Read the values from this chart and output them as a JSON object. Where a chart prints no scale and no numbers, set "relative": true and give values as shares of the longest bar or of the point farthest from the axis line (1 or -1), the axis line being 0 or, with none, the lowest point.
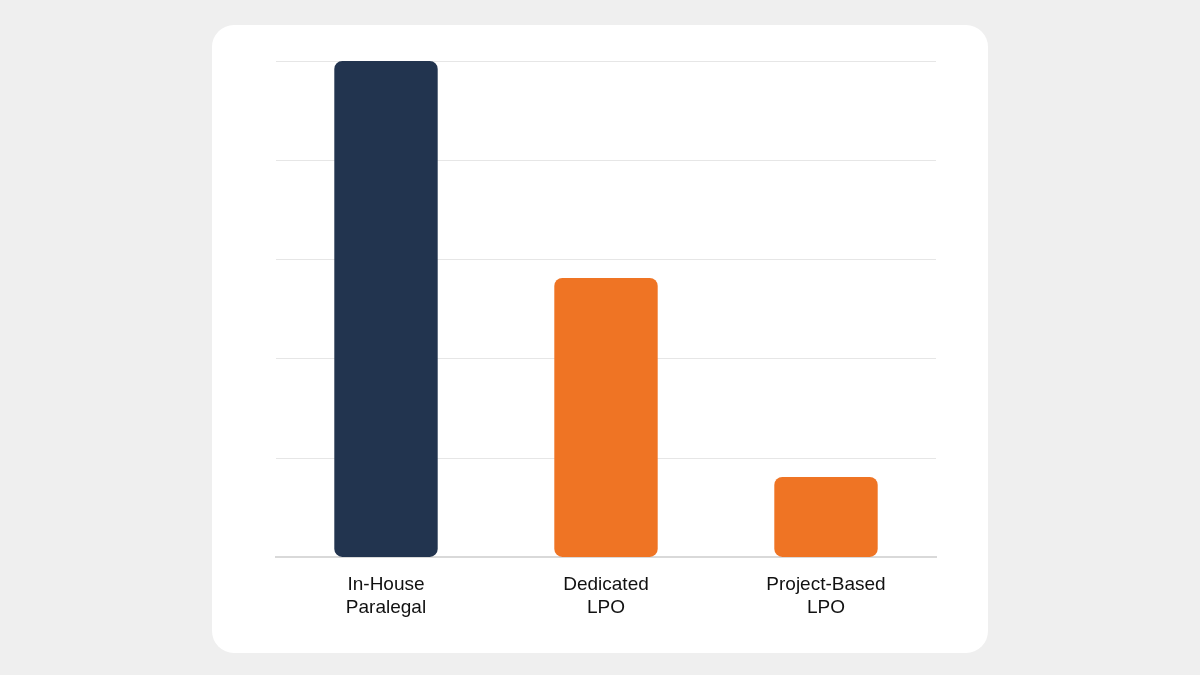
{
  "chart_data": {
    "type": "bar",
    "relative": true,
    "grid": "y",
    "categories": [
      "In-House Paralegal",
      "Dedicated LPO",
      "Project-Based LPO"
    ],
    "values": [
      1,
      0.563,
      0.162
    ],
    "colors": [
      "#22344f",
      "#ef7424",
      "#ef7424"
    ]
  }
}
